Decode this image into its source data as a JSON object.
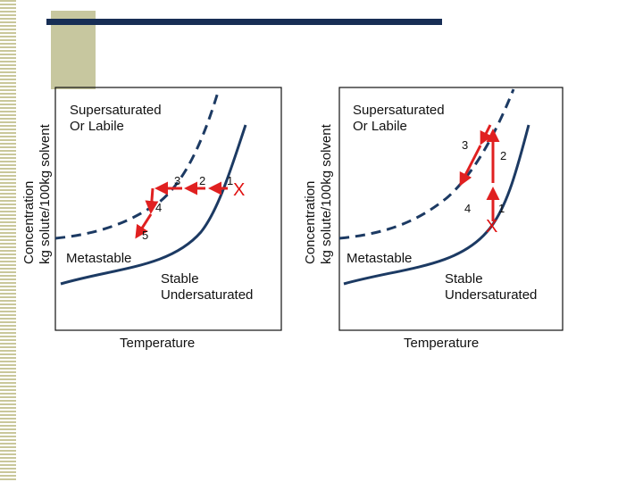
{
  "colors": {
    "curve": "#1c3a63",
    "arrow": "#e02020",
    "accent": "#c7c79f",
    "bar": "#172e55"
  },
  "left_panel": {
    "ylabel_line1": "Concentration",
    "ylabel_line2": "kg solute/100kg solvent",
    "region_supersaturated_line1": "Supersaturated",
    "region_supersaturated_line2": "Or Labile",
    "region_metastable": "Metastable",
    "region_stable_line1": "Stable",
    "region_stable_line2": "Undersaturated",
    "xlabel": "Temperature",
    "start_mark": "X",
    "steps": [
      "1",
      "2",
      "3",
      "4",
      "5"
    ]
  },
  "right_panel": {
    "ylabel_line1": "Concentration",
    "ylabel_line2": "kg solute/100kg solvent",
    "region_supersaturated_line1": "Supersaturated",
    "region_supersaturated_line2": "Or Labile",
    "region_metastable": "Metastable",
    "region_stable_line1": "Stable",
    "region_stable_line2": "Undersaturated",
    "xlabel": "Temperature",
    "start_mark": "X",
    "steps": [
      "1",
      "2",
      "3",
      "4"
    ]
  }
}
